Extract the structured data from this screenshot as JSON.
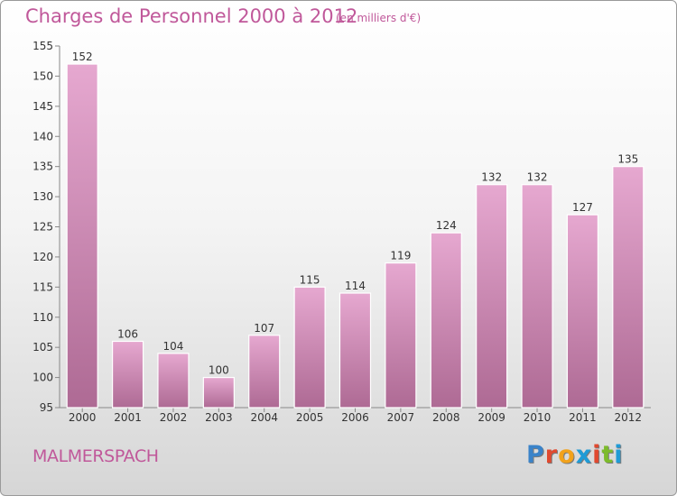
{
  "header": {
    "title": "Charges de Personnel 2000 à 2012",
    "subtitle": "(en milliers d'€)"
  },
  "footer": {
    "commune": "MALMERSPACH",
    "brand": "Proxiti",
    "brand_letters": [
      {
        "char": "P",
        "color": "#3a83c9"
      },
      {
        "char": "r",
        "color": "#e0492f"
      },
      {
        "char": "o",
        "color": "#f2a21b"
      },
      {
        "char": "x",
        "color": "#1f9bd6"
      },
      {
        "char": "i",
        "color": "#e0492f"
      },
      {
        "char": "t",
        "color": "#7dbb2b"
      },
      {
        "char": "i",
        "color": "#1f9bd6"
      }
    ]
  },
  "colors": {
    "accent": "#c0589a",
    "bar_top": "#e6a8d0",
    "bar_bottom": "#ae6a94"
  },
  "chart_data": {
    "type": "bar",
    "title": "Charges de Personnel 2000 à 2012",
    "subtitle": "(en milliers d'€)",
    "categories": [
      "2000",
      "2001",
      "2002",
      "2003",
      "2004",
      "2005",
      "2006",
      "2007",
      "2008",
      "2009",
      "2010",
      "2011",
      "2012"
    ],
    "values": [
      152,
      106,
      104,
      100,
      107,
      115,
      114,
      119,
      124,
      132,
      132,
      127,
      135
    ],
    "ylim": [
      95,
      155
    ],
    "yticks": [
      95,
      100,
      105,
      110,
      115,
      120,
      125,
      130,
      135,
      140,
      145,
      150,
      155
    ],
    "grid": false,
    "data_labels": true
  }
}
